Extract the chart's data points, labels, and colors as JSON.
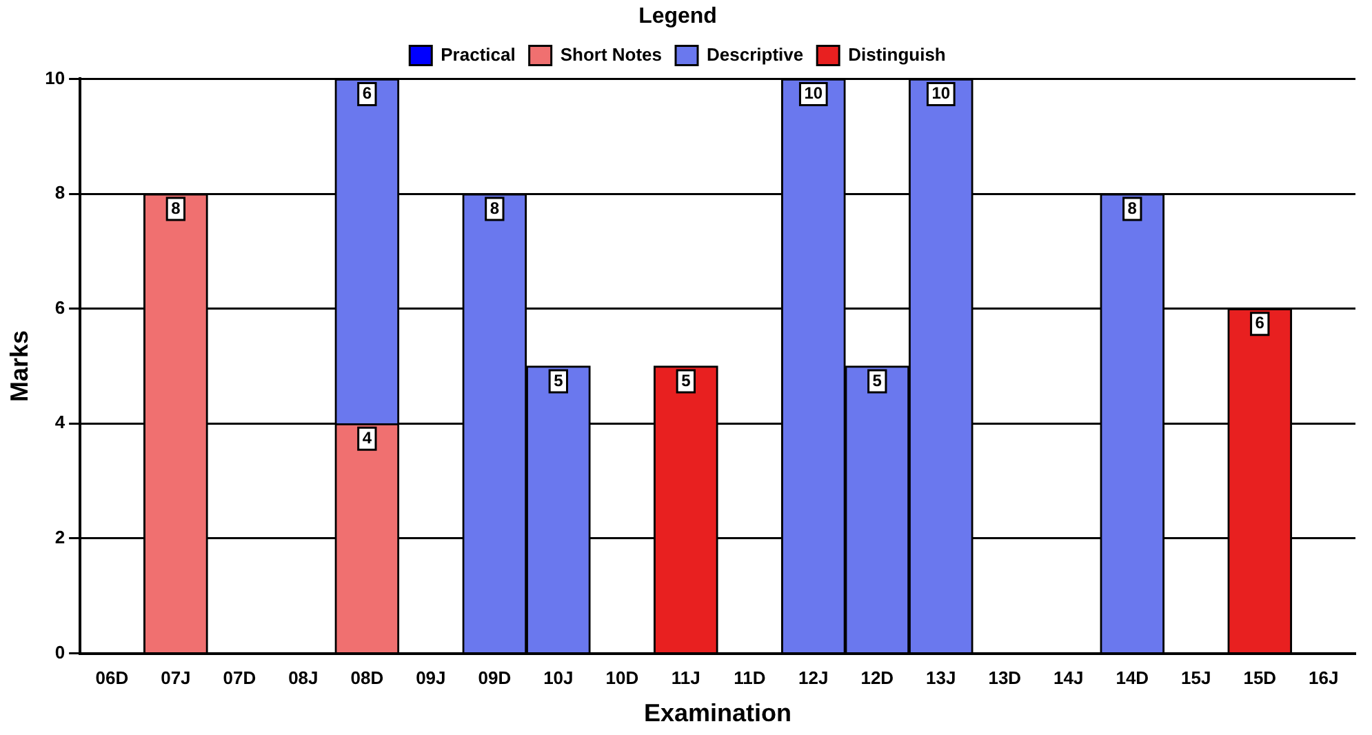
{
  "chart_data": {
    "type": "bar",
    "xlabel": "Examination",
    "ylabel": "Marks",
    "legend_title": "Legend",
    "categories": [
      "06D",
      "07J",
      "07D",
      "08J",
      "08D",
      "09J",
      "09D",
      "10J",
      "10D",
      "11J",
      "11D",
      "12J",
      "12D",
      "13J",
      "13D",
      "14J",
      "14D",
      "15J",
      "15D",
      "16J"
    ],
    "series": [
      {
        "name": "Practical",
        "color": "#0000ff",
        "values": [
          null,
          null,
          null,
          null,
          null,
          null,
          null,
          null,
          null,
          null,
          null,
          null,
          null,
          null,
          null,
          null,
          null,
          null,
          null,
          null
        ]
      },
      {
        "name": "Short Notes",
        "color": "#f07070",
        "values": [
          null,
          8,
          null,
          null,
          4,
          null,
          null,
          null,
          null,
          null,
          null,
          null,
          null,
          null,
          null,
          null,
          null,
          null,
          null,
          null
        ]
      },
      {
        "name": "Descriptive",
        "color": "#6a78ee",
        "values": [
          null,
          null,
          null,
          null,
          6,
          null,
          8,
          5,
          null,
          null,
          null,
          10,
          5,
          10,
          null,
          null,
          8,
          null,
          null,
          null
        ]
      },
      {
        "name": "Distinguish",
        "color": "#e82020",
        "values": [
          null,
          null,
          null,
          null,
          null,
          null,
          null,
          null,
          null,
          5,
          null,
          null,
          null,
          null,
          null,
          null,
          null,
          null,
          6,
          null
        ]
      }
    ],
    "stacked": true,
    "ylim": [
      0,
      10
    ],
    "yticks": [
      0,
      2,
      4,
      6,
      8,
      10
    ],
    "grid": "y",
    "legend": "top",
    "data_labels": true
  }
}
